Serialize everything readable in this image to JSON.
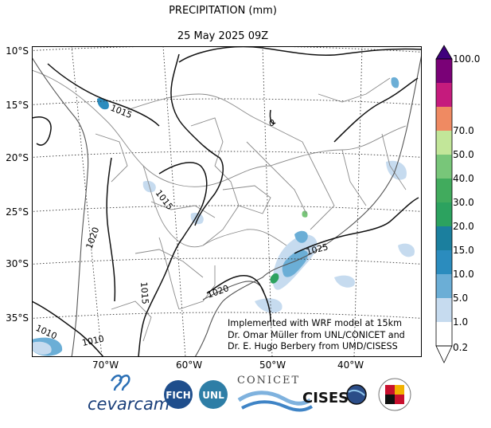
{
  "title": "PRECIPITATION (mm)",
  "subtitle": "25 May 2025 09Z",
  "lat_labels": [
    "10°S",
    "15°S",
    "20°S",
    "25°S",
    "30°S",
    "35°S"
  ],
  "lon_labels": [
    "70°W",
    "60°W",
    "50°W",
    "40°W"
  ],
  "colorbar": {
    "levels": [
      "0.2",
      "1.0",
      "5.0",
      "10.0",
      "15.0",
      "20.0",
      "30.0",
      "40.0",
      "50.0",
      "70.0",
      "100.0"
    ],
    "colors": [
      "#ffffff",
      "#c6dbef",
      "#6baed6",
      "#2b8cbe",
      "#1b7f9e",
      "#2ca25f",
      "#41ab5d",
      "#78c679",
      "#c2e699",
      "#ef8a62",
      "#c51b7d",
      "#7a0177"
    ],
    "extend_over_color": "#3f007d"
  },
  "isobar_labels": [
    "1015",
    "1015",
    "1020",
    "1015",
    "1020",
    "1025",
    "1010",
    "1010",
    "0"
  ],
  "annotation": [
    "Implemented with WRF model at 15km",
    "Dr. Omar Müller from UNL/CONICET and",
    "Dr. E. Hugo Berbery from UMD/CISESS"
  ],
  "logos": {
    "cevarcam": "cevarcam",
    "fich": "FICH",
    "unl": "UNL",
    "conicet": "CONICET",
    "cisess": "CISESS",
    "umd": "UNIVERSITY OF MARYLAND"
  }
}
